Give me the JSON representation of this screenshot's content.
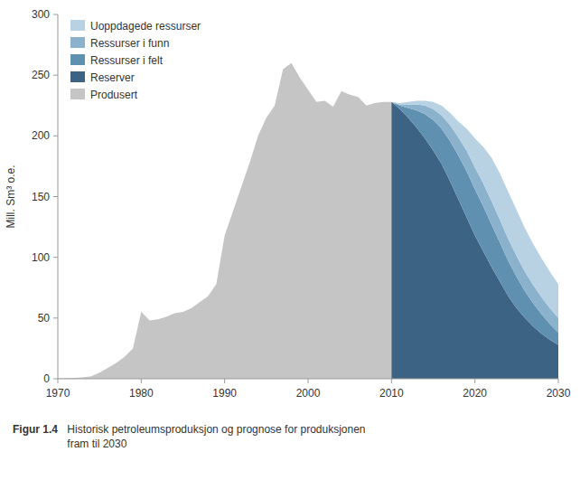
{
  "chart_data": {
    "type": "area",
    "stacked": true,
    "grid": false,
    "legend": "upper left",
    "ylabel": "Mill. Sm³ o.e.",
    "annotations": [
      "Figur 1.4",
      "Historisk petroleumsproduksjon og prognose for produksjonen\nfram til 2030"
    ],
    "xlim": [
      1970,
      2030
    ],
    "ylim": [
      0,
      300
    ],
    "xticks": [
      1970,
      1980,
      1990,
      2000,
      2010,
      2020,
      2030
    ],
    "yticks": [
      0,
      50,
      100,
      150,
      200,
      250,
      300
    ],
    "series": [
      {
        "name": "Produsert",
        "color": "#c5c5c5",
        "x": [
          1970,
          1971,
          1972,
          1973,
          1974,
          1975,
          1976,
          1977,
          1978,
          1979,
          1980,
          1981,
          1982,
          1983,
          1984,
          1985,
          1986,
          1987,
          1988,
          1989,
          1990,
          1991,
          1992,
          1993,
          1994,
          1995,
          1996,
          1997,
          1998,
          1999,
          2000,
          2001,
          2002,
          2003,
          2004,
          2005,
          2006,
          2007,
          2008,
          2009,
          2010
        ],
        "values": [
          0.3,
          0.5,
          0.8,
          1.2,
          2,
          5,
          9,
          13,
          18,
          25,
          55,
          48,
          49,
          51,
          54,
          55,
          58,
          63,
          68,
          78,
          118,
          138,
          158,
          178,
          200,
          215,
          225,
          255,
          260,
          248,
          238,
          228,
          229,
          224,
          237,
          234,
          232,
          225,
          227,
          228,
          228
        ]
      },
      {
        "name": "Reserver",
        "color": "#3d6384",
        "x": [
          2010,
          2011,
          2012,
          2013,
          2014,
          2015,
          2016,
          2017,
          2018,
          2019,
          2020,
          2021,
          2022,
          2023,
          2024,
          2025,
          2026,
          2027,
          2028,
          2029,
          2030
        ],
        "values": [
          228,
          222,
          215,
          207,
          198,
          188,
          177,
          163,
          148,
          133,
          118,
          105,
          92,
          80,
          68,
          58,
          50,
          43,
          37,
          32,
          28
        ]
      },
      {
        "name": "Ressurser i felt",
        "color": "#6090b0",
        "x": [
          2010,
          2011,
          2012,
          2013,
          2014,
          2015,
          2016,
          2017,
          2018,
          2019,
          2020,
          2021,
          2022,
          2023,
          2024,
          2025,
          2026,
          2027,
          2028,
          2029,
          2030
        ],
        "values": [
          0,
          3,
          8,
          14,
          20,
          25,
          29,
          33,
          36,
          38,
          38,
          37,
          35,
          32,
          29,
          26,
          22,
          19,
          16,
          13,
          10
        ]
      },
      {
        "name": "Ressurser i funn",
        "color": "#8ab2cc",
        "x": [
          2010,
          2011,
          2012,
          2013,
          2014,
          2015,
          2016,
          2017,
          2018,
          2019,
          2020,
          2021,
          2022,
          2023,
          2024,
          2025,
          2026,
          2027,
          2028,
          2029,
          2030
        ],
        "values": [
          0,
          1,
          3,
          5,
          7,
          9,
          11,
          13,
          15,
          17,
          18,
          19,
          19,
          19,
          18,
          17,
          16,
          15,
          14,
          13,
          12
        ]
      },
      {
        "name": "Uoppdagede ressurser",
        "color": "#b8d2e4",
        "x": [
          2010,
          2011,
          2012,
          2013,
          2014,
          2015,
          2016,
          2017,
          2018,
          2019,
          2020,
          2021,
          2022,
          2023,
          2024,
          2025,
          2026,
          2027,
          2028,
          2029,
          2030
        ],
        "values": [
          0,
          1,
          2,
          3,
          4,
          6,
          8,
          10,
          13,
          18,
          24,
          30,
          36,
          38,
          39,
          38,
          36,
          34,
          32,
          30,
          28
        ]
      }
    ]
  }
}
